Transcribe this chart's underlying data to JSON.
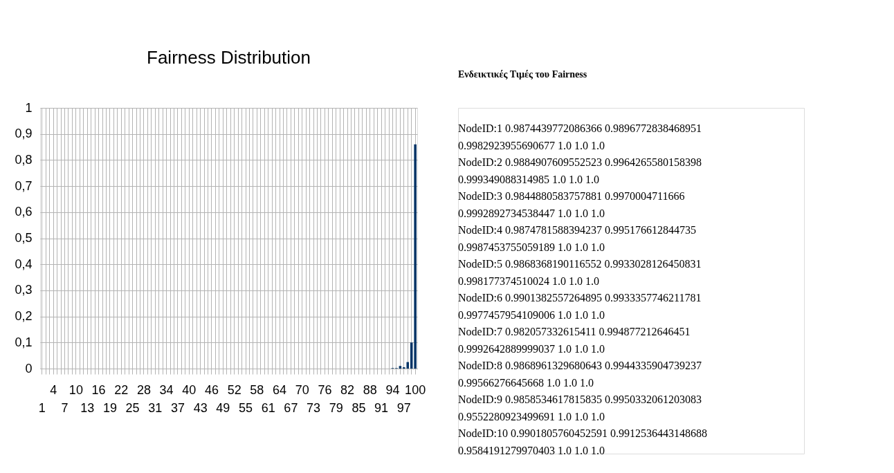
{
  "chart_data": [
    {
      "type": "bar",
      "title": "Fairness Distribution",
      "categories": [
        "1",
        null,
        null,
        "4",
        null,
        null,
        "7",
        null,
        null,
        "10",
        null,
        null,
        "13",
        null,
        null,
        "16",
        null,
        null,
        "19",
        null,
        null,
        "22",
        null,
        null,
        "25",
        null,
        null,
        "28",
        null,
        null,
        "31",
        null,
        null,
        "34",
        null,
        null,
        "37",
        null,
        null,
        "40",
        null,
        null,
        "43",
        null,
        null,
        "46",
        null,
        null,
        "49",
        null,
        null,
        "52",
        null,
        null,
        "55",
        null,
        null,
        "58",
        null,
        null,
        "61",
        null,
        null,
        "64",
        null,
        null,
        "67",
        null,
        null,
        "70",
        null,
        null,
        "73",
        null,
        null,
        "76",
        null,
        null,
        "79",
        null,
        null,
        "82",
        null,
        null,
        "85",
        null,
        null,
        "88",
        null,
        null,
        "91",
        null,
        null,
        "94",
        null,
        null,
        "97",
        null,
        null,
        "100"
      ],
      "values": [
        0,
        0,
        0,
        0,
        0,
        0,
        0,
        0,
        0,
        0,
        0,
        0,
        0,
        0,
        0,
        0,
        0,
        0,
        0,
        0,
        0,
        0,
        0,
        0,
        0,
        0,
        0,
        0,
        0,
        0,
        0,
        0,
        0,
        0,
        0,
        0,
        0,
        0,
        0,
        0,
        0,
        0,
        0,
        0,
        0,
        0,
        0,
        0,
        0,
        0,
        0,
        0,
        0,
        0,
        0,
        0,
        0,
        0,
        0,
        0,
        0,
        0,
        0,
        0,
        0,
        0,
        0,
        0,
        0,
        0,
        0,
        0,
        0,
        0,
        0,
        0,
        0,
        0,
        0,
        0,
        0,
        0,
        0,
        0,
        0,
        0,
        0,
        0,
        0,
        0,
        0,
        0,
        0,
        0.002,
        0.002,
        0.01,
        0.005,
        0.025,
        0.1,
        0.86
      ],
      "color": "#003366",
      "ylim": [
        0,
        1
      ],
      "yticks": [
        0,
        {
          "value": 0.1,
          "label": "0,1"
        },
        {
          "value": 0.2,
          "label": "0,2"
        },
        {
          "value": 0.3,
          "label": "0,3"
        },
        {
          "value": 0.4,
          "label": "0,4"
        },
        {
          "value": 0.5,
          "label": "0,5"
        },
        {
          "value": 0.6,
          "label": "0,6"
        },
        {
          "value": 0.7,
          "label": "0,7"
        },
        {
          "value": 0.8,
          "label": "0,8"
        },
        {
          "value": 0.9,
          "label": "0,9"
        },
        1
      ],
      "grid": true
    },
    {
      "type": "other",
      "title": "Ενδεικτικές Τιμές του Fairness",
      "annotations": [
        "NodeID:1 0.9874439772086366 0.9896772838468951",
        "0.9982923955690677 1.0 1.0 1.0",
        "NodeID:2 0.9884907609552523 0.9964265580158398",
        "0.999349088314985 1.0 1.0 1.0",
        "NodeID:3 0.9844880583757881 0.9970004711666",
        "0.9992892734538447 1.0 1.0 1.0",
        "NodeID:4 0.9874781588394237 0.995176612844735",
        "0.9987453755059189 1.0 1.0 1.0",
        "NodeID:5 0.9868368190116552 0.9933028126450831",
        "0.998177374510024 1.0 1.0 1.0",
        "NodeID:6 0.9901382557264895 0.9933357746211781",
        "0.9977457954109006 1.0 1.0 1.0",
        "NodeID:7 0.982057332615411 0.994877212646451",
        "0.9992642889999037 1.0 1.0 1.0",
        "NodeID:8 0.9868961329680643 0.9944335904739237",
        "0.99566276645668 1.0 1.0 1.0",
        "NodeID:9 0.9858534617815835 0.9950332061203083",
        "0.9552280923499691 1.0 1.0 1.0",
        "NodeID:10 0.9901805760452591 0.9912536443148688",
        "0.9584191279970403 1.0 1.0 1.0"
      ]
    }
  ]
}
